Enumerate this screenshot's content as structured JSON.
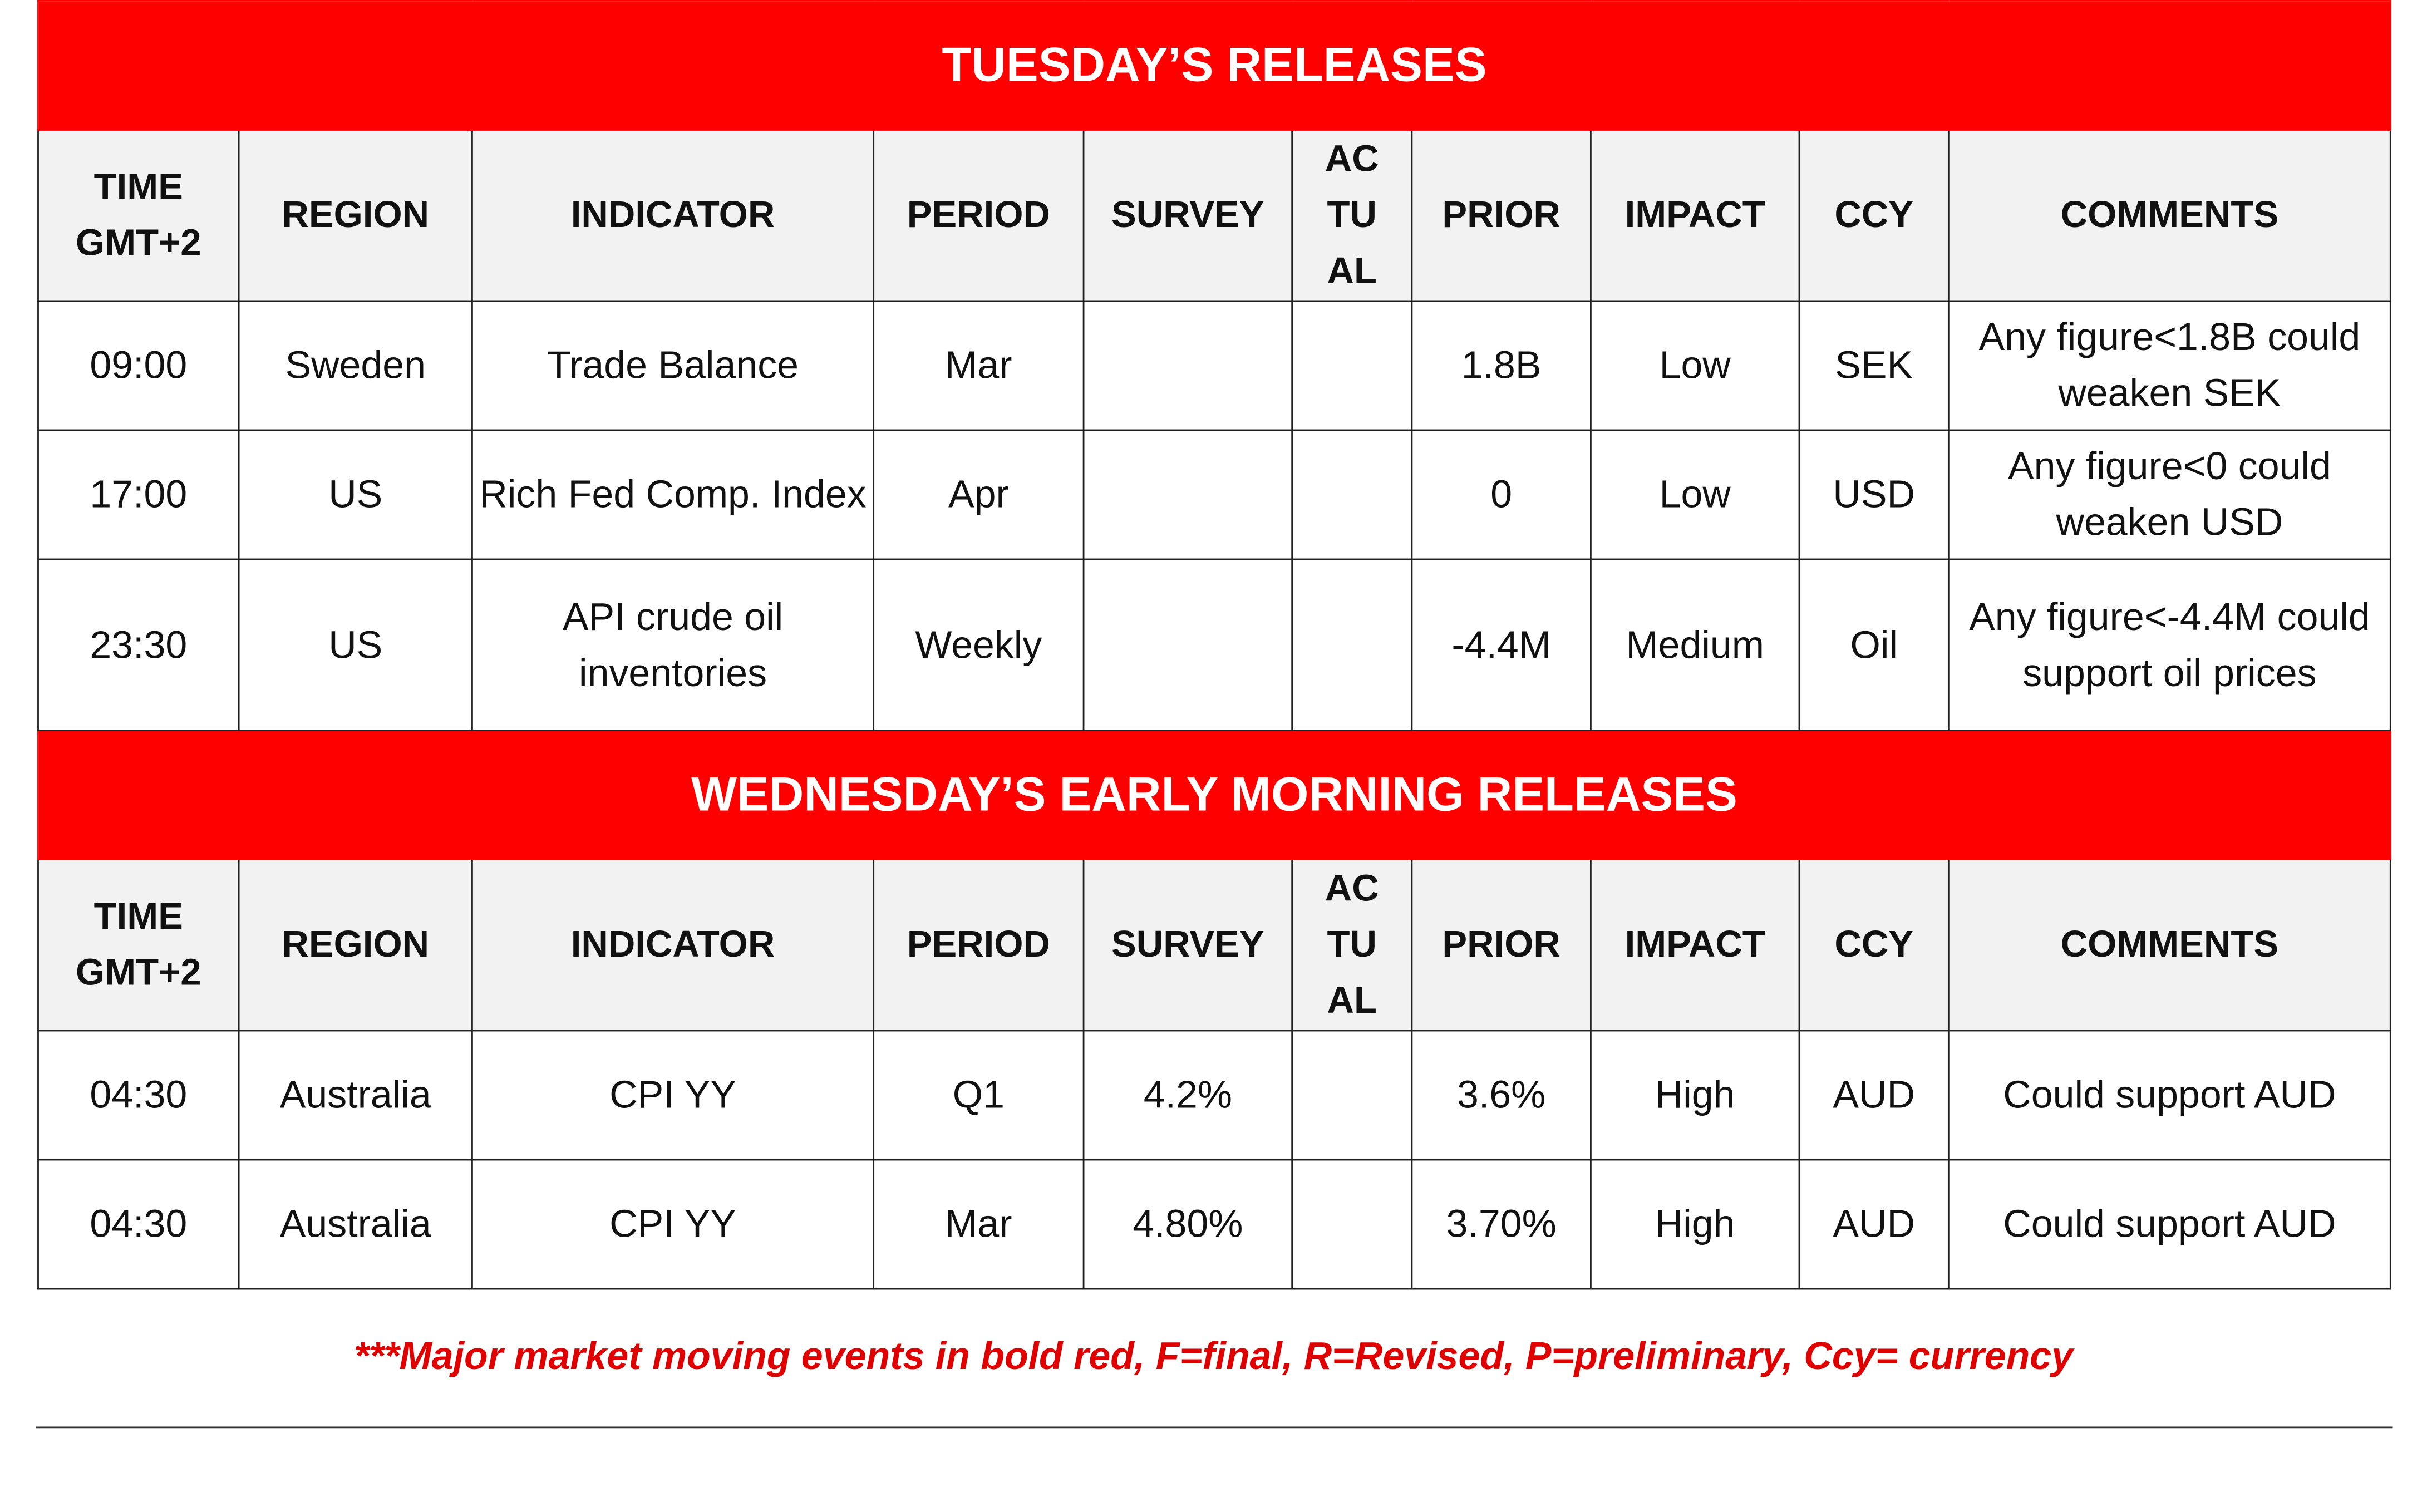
{
  "columns": [
    "TIME GMT+2",
    "REGION",
    "INDICATOR",
    "PERIOD",
    "SURVEY",
    "AC TU AL",
    "PRIOR",
    "IMPACT",
    "CCY",
    "COMMENTS"
  ],
  "sections": [
    {
      "title": "TUESDAY’S RELEASES",
      "rows": [
        [
          "09:00",
          "Sweden",
          "Trade Balance",
          "Mar",
          "",
          "",
          "1.8B",
          "Low",
          "SEK",
          "Any figure<1.8B could weaken SEK"
        ],
        [
          "17:00",
          "US",
          "Rich Fed Comp. Index",
          "Apr",
          "",
          "",
          "0",
          "Low",
          "USD",
          "Any figure<0 could weaken USD"
        ],
        [
          "23:30",
          "US",
          "API crude oil inventories",
          "Weekly",
          "",
          "",
          "-4.4M",
          "Medium",
          "Oil",
          "Any figure<-4.4M could support oil prices"
        ]
      ]
    },
    {
      "title": "WEDNESDAY’S EARLY MORNING RELEASES",
      "rows": [
        [
          "04:30",
          "Australia",
          "CPI YY",
          "Q1",
          "4.2%",
          "",
          "3.6%",
          "High",
          "AUD",
          "Could support AUD"
        ],
        [
          "04:30",
          "Australia",
          "CPI YY",
          "Mar",
          "4.80%",
          "",
          "3.70%",
          "High",
          "AUD",
          "Could support AUD"
        ]
      ]
    }
  ],
  "footer": "***Major market moving events in bold red, F=final, R=Revised, P=preliminary, Ccy= currency",
  "colors": {
    "banner": "#fe0000",
    "header_bg": "#f2f2f2",
    "footer_text": "#e00000"
  }
}
